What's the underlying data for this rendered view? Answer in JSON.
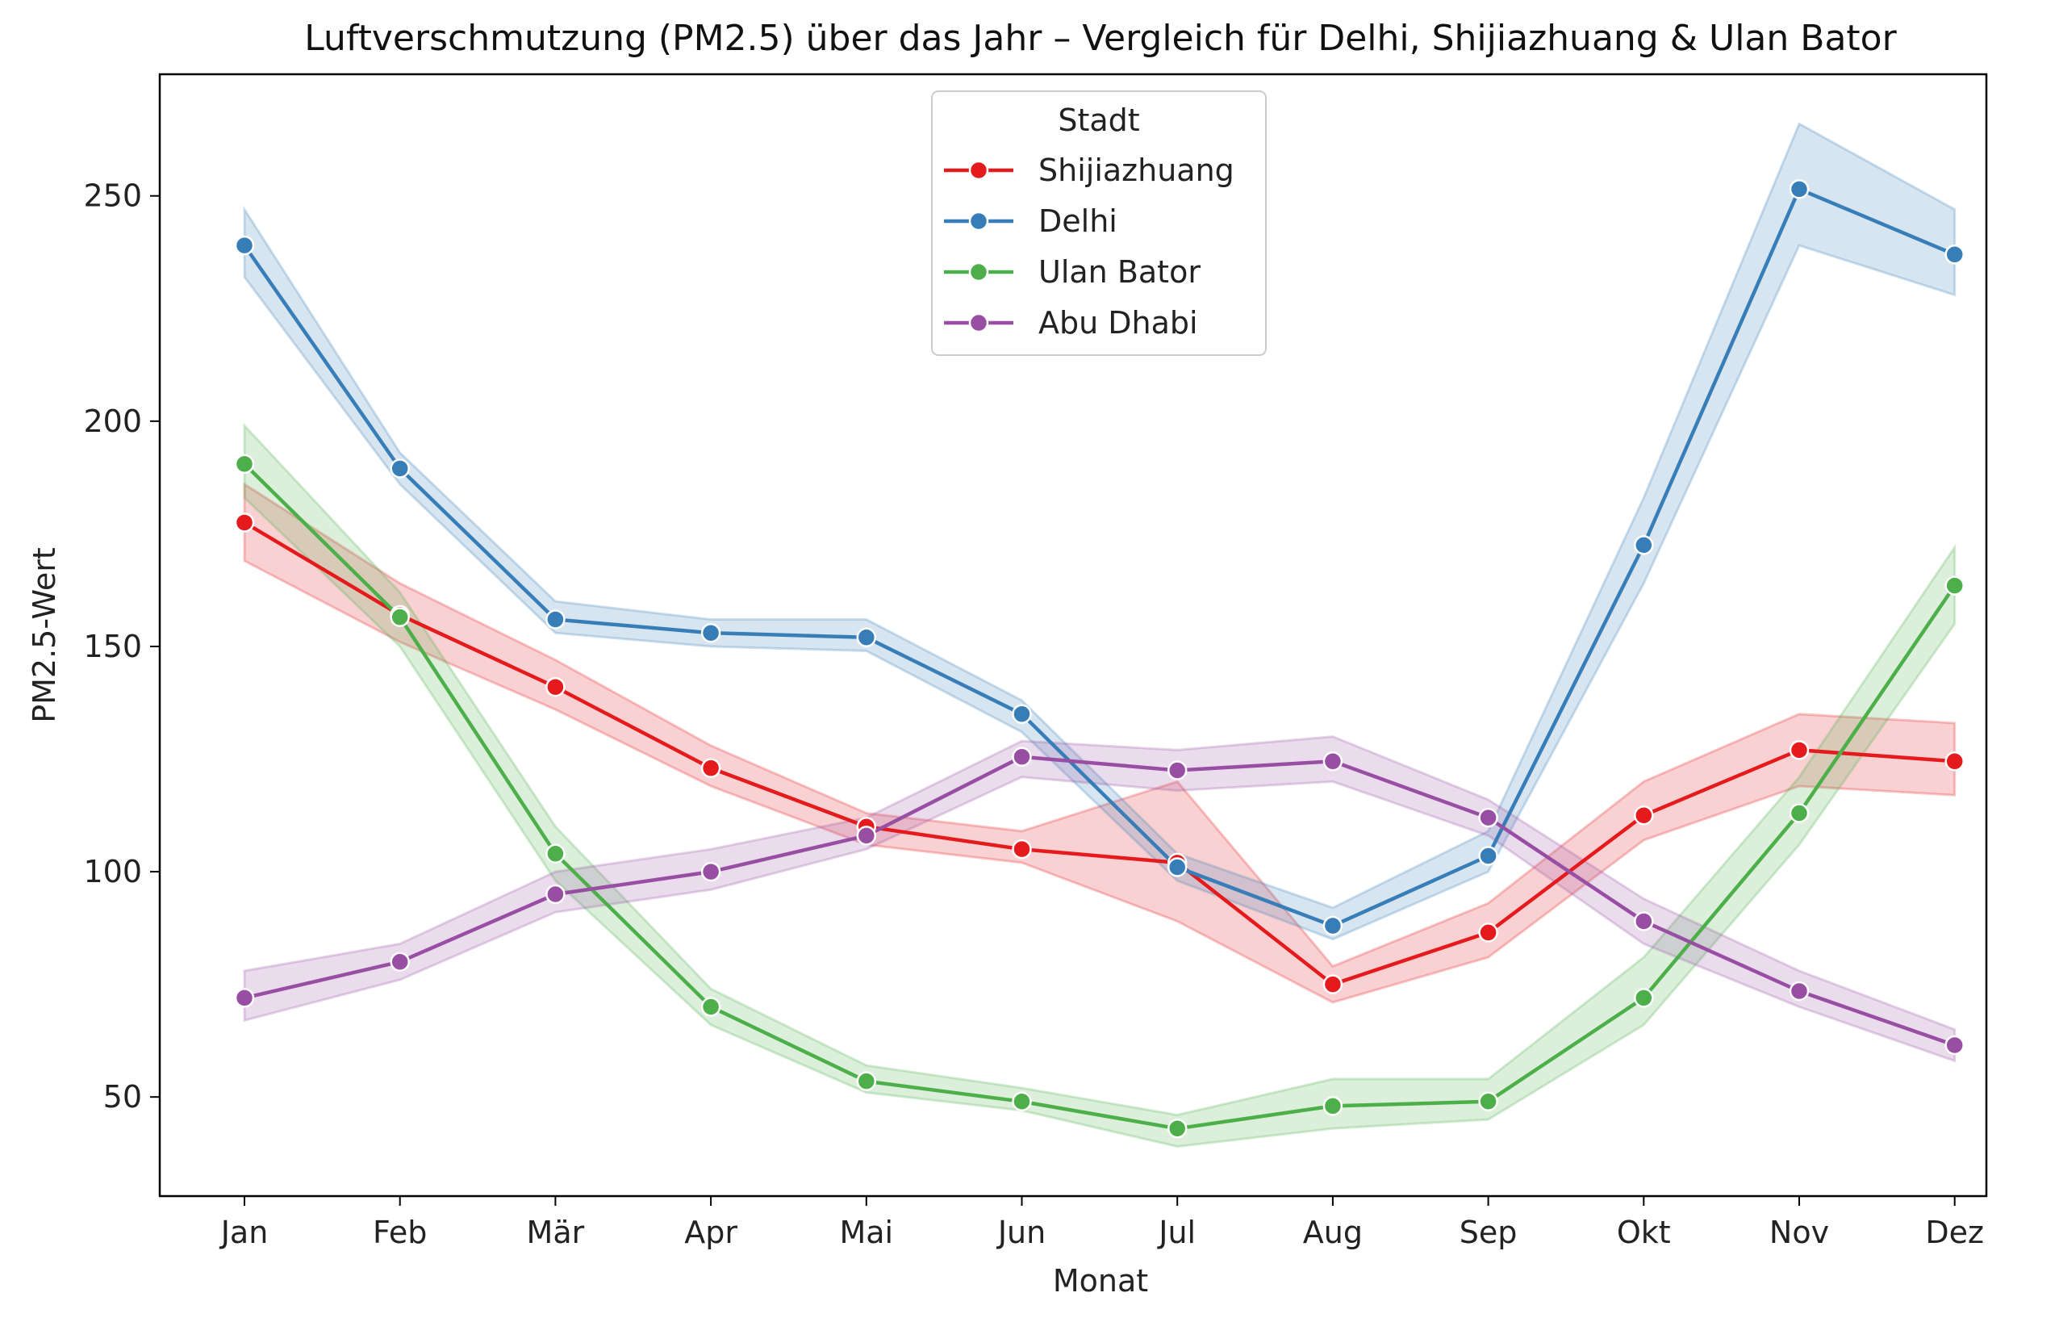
{
  "chart_data": {
    "type": "line",
    "title": "Luftverschmutzung (PM2.5) über das Jahr – Vergleich für Delhi, Shijiazhuang & Ulan Bator",
    "xlabel": "Monat",
    "ylabel": "PM2.5-Wert",
    "categories": [
      "Jan",
      "Feb",
      "Mär",
      "Apr",
      "Mai",
      "Jun",
      "Jul",
      "Aug",
      "Sep",
      "Okt",
      "Nov",
      "Dez"
    ],
    "ylim": [
      28,
      277
    ],
    "yticks": [
      50,
      100,
      150,
      200,
      250
    ],
    "grid": false,
    "legend": {
      "title": "Stadt",
      "placement": "top-center"
    },
    "series": [
      {
        "name": "Shijiazhuang",
        "color": "#e41a1c",
        "values": [
          177.5,
          157,
          141,
          123,
          110,
          105,
          102,
          75,
          86.5,
          112.5,
          127,
          124.5
        ],
        "ci_lower": [
          169,
          151,
          136,
          119,
          106,
          102,
          89,
          71,
          81,
          107,
          119,
          117
        ],
        "ci_upper": [
          186,
          164,
          147,
          128,
          113,
          109,
          120,
          79,
          93,
          120,
          135,
          133
        ]
      },
      {
        "name": "Delhi",
        "color": "#377eb8",
        "values": [
          239,
          189.5,
          156,
          153,
          152,
          135,
          101,
          88,
          103.5,
          172.5,
          251.5,
          237
        ],
        "ci_lower": [
          232,
          186,
          153,
          150,
          149,
          131,
          98,
          85,
          100,
          164,
          239,
          228
        ],
        "ci_upper": [
          247,
          193,
          160,
          156,
          156,
          138,
          104,
          92,
          109,
          183,
          266,
          247
        ]
      },
      {
        "name": "Ulan Bator",
        "color": "#4daf4a",
        "values": [
          190.5,
          156.5,
          104,
          70,
          53.5,
          49,
          43,
          48,
          49,
          72,
          113,
          163.5
        ],
        "ci_lower": [
          183,
          150,
          98,
          66,
          51,
          47,
          39,
          43,
          45,
          66,
          106,
          155
        ],
        "ci_upper": [
          199,
          162,
          110,
          74,
          57,
          52,
          46,
          54,
          54,
          81,
          121,
          172
        ]
      },
      {
        "name": "Abu Dhabi",
        "color": "#984ea3",
        "values": [
          72,
          80,
          95,
          100,
          108,
          125.5,
          122.5,
          124.5,
          112,
          89,
          73.5,
          61.5
        ],
        "ci_lower": [
          67,
          76,
          91,
          96,
          105,
          121,
          118,
          120,
          108,
          84,
          70,
          58
        ],
        "ci_upper": [
          78,
          84,
          100,
          105,
          112,
          129,
          127,
          130,
          116,
          94,
          78,
          65
        ]
      }
    ]
  }
}
